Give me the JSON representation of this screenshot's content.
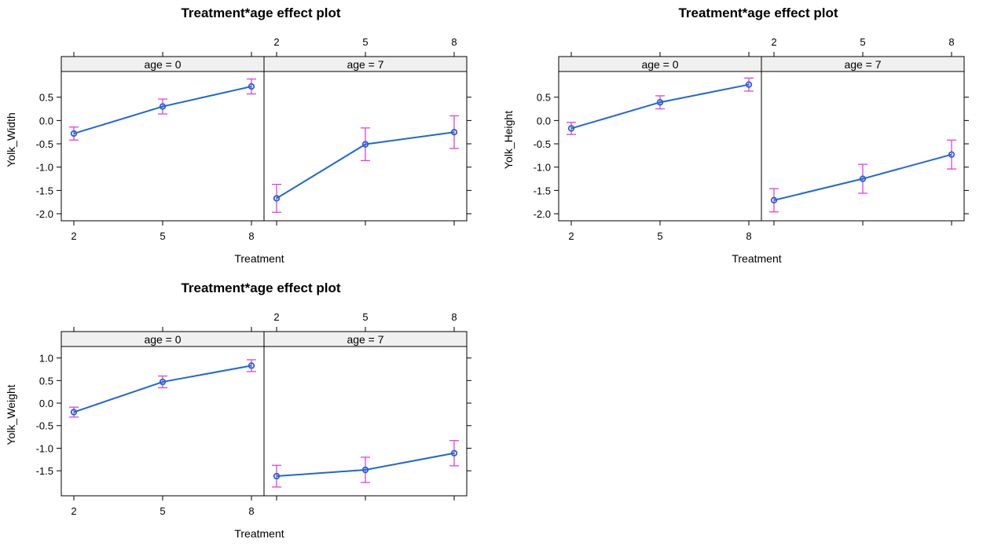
{
  "chart_data": [
    {
      "type": "line",
      "title": "Treatment*age effect plot",
      "xlabel": "Treatment",
      "ylabel": "Yolk_Width",
      "x_ticks": [
        "2",
        "5",
        "8"
      ],
      "y_ticks": [
        "0.5",
        "0.0",
        "-0.5",
        "-1.0",
        "-1.5",
        "-2.0"
      ],
      "ylim": [
        -2.05,
        0.95
      ],
      "panels": [
        {
          "strip": "age = 0",
          "x": [
            2,
            5,
            8
          ],
          "y": [
            -0.28,
            0.3,
            0.73
          ],
          "lower": [
            -0.42,
            0.14,
            0.57
          ],
          "upper": [
            -0.14,
            0.46,
            0.89
          ]
        },
        {
          "strip": "age = 7",
          "x": [
            2,
            5,
            8
          ],
          "y": [
            -1.67,
            -0.51,
            -0.25
          ],
          "lower": [
            -1.97,
            -0.86,
            -0.6
          ],
          "upper": [
            -1.37,
            -0.16,
            0.1
          ]
        }
      ]
    },
    {
      "type": "line",
      "title": "Treatment*age effect plot",
      "xlabel": "Treatment",
      "ylabel": "Yolk_Height",
      "x_ticks": [
        "2",
        "5",
        "8"
      ],
      "y_ticks": [
        "0.5",
        "0.0",
        "-0.5",
        "-1.0",
        "-1.5",
        "-2.0"
      ],
      "ylim": [
        -2.05,
        0.95
      ],
      "panels": [
        {
          "strip": "age = 0",
          "x": [
            2,
            5,
            8
          ],
          "y": [
            -0.17,
            0.39,
            0.77
          ],
          "lower": [
            -0.3,
            0.25,
            0.63
          ],
          "upper": [
            -0.04,
            0.53,
            0.91
          ]
        },
        {
          "strip": "age = 7",
          "x": [
            2,
            5,
            8
          ],
          "y": [
            -1.71,
            -1.25,
            -0.73
          ],
          "lower": [
            -1.96,
            -1.56,
            -1.04
          ],
          "upper": [
            -1.46,
            -0.94,
            -0.42
          ]
        }
      ]
    },
    {
      "type": "line",
      "title": "Treatment*age effect plot",
      "xlabel": "Treatment",
      "ylabel": "Yolk_Weight",
      "x_ticks": [
        "2",
        "5",
        "8"
      ],
      "y_ticks": [
        "1.0",
        "0.5",
        "0.0",
        "-0.5",
        "-1.0",
        "-1.5"
      ],
      "ylim": [
        -1.95,
        1.15
      ],
      "panels": [
        {
          "strip": "age = 0",
          "x": [
            2,
            5,
            8
          ],
          "y": [
            -0.2,
            0.47,
            0.83
          ],
          "lower": [
            -0.31,
            0.34,
            0.7
          ],
          "upper": [
            -0.09,
            0.6,
            0.96
          ]
        },
        {
          "strip": "age = 7",
          "x": [
            2,
            5,
            8
          ],
          "y": [
            -1.62,
            -1.48,
            -1.11
          ],
          "lower": [
            -1.86,
            -1.76,
            -1.39
          ],
          "upper": [
            -1.38,
            -1.2,
            -0.83
          ]
        }
      ]
    }
  ],
  "colors": {
    "line": "#1f66d8",
    "point": "#1f66d8",
    "errorbar": "#e040e0",
    "strip_bg": "#f0f0f0",
    "axis": "#000000"
  }
}
